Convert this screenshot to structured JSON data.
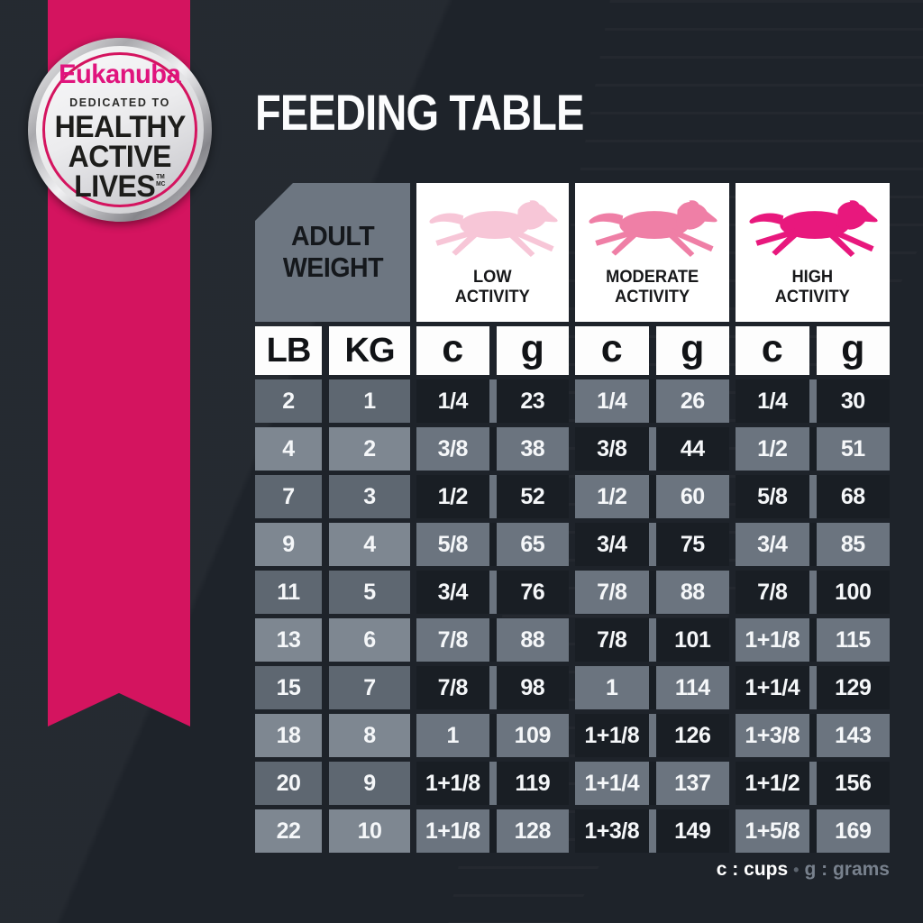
{
  "colors": {
    "background": "#1e232a",
    "ribbon_pink": "#d4145f",
    "brand_pink": "#e0147d",
    "dog_low": "#f7c6d7",
    "dog_moderate": "#ef7fa6",
    "dog_high": "#e8187d",
    "cell_dark": "#191e24",
    "cell_gray": "#6b747f",
    "weight_cell_dark": "#5e6771",
    "weight_cell_light": "#7e8791"
  },
  "badge": {
    "brand": "Eukanuba",
    "tagline": "DEDICATED TO",
    "line1": "HEALTHY",
    "line2": "ACTIVE",
    "line3": "LIVES",
    "tm": "TM",
    "mc": "MC"
  },
  "title": "FEEDING TABLE",
  "table": {
    "weight_header": {
      "line1": "ADULT",
      "line2": "WEIGHT"
    },
    "activities": [
      {
        "line1": "LOW",
        "line2": "ACTIVITY",
        "dog_color": "#f7c6d7"
      },
      {
        "line1": "MODERATE",
        "line2": "ACTIVITY",
        "dog_color": "#ef7fa6"
      },
      {
        "line1": "HIGH",
        "line2": "ACTIVITY",
        "dog_color": "#e8187d"
      }
    ],
    "col_headers": {
      "lb": "LB",
      "kg": "KG",
      "c": "c",
      "g": "g"
    },
    "rows": [
      {
        "lb": "2",
        "kg": "1",
        "low_c": "1/4",
        "low_g": "23",
        "mod_c": "1/4",
        "mod_g": "26",
        "high_c": "1/4",
        "high_g": "30"
      },
      {
        "lb": "4",
        "kg": "2",
        "low_c": "3/8",
        "low_g": "38",
        "mod_c": "3/8",
        "mod_g": "44",
        "high_c": "1/2",
        "high_g": "51"
      },
      {
        "lb": "7",
        "kg": "3",
        "low_c": "1/2",
        "low_g": "52",
        "mod_c": "1/2",
        "mod_g": "60",
        "high_c": "5/8",
        "high_g": "68"
      },
      {
        "lb": "9",
        "kg": "4",
        "low_c": "5/8",
        "low_g": "65",
        "mod_c": "3/4",
        "mod_g": "75",
        "high_c": "3/4",
        "high_g": "85"
      },
      {
        "lb": "11",
        "kg": "5",
        "low_c": "3/4",
        "low_g": "76",
        "mod_c": "7/8",
        "mod_g": "88",
        "high_c": "7/8",
        "high_g": "100"
      },
      {
        "lb": "13",
        "kg": "6",
        "low_c": "7/8",
        "low_g": "88",
        "mod_c": "7/8",
        "mod_g": "101",
        "high_c": "1+1/8",
        "high_g": "115"
      },
      {
        "lb": "15",
        "kg": "7",
        "low_c": "7/8",
        "low_g": "98",
        "mod_c": "1",
        "mod_g": "114",
        "high_c": "1+1/4",
        "high_g": "129"
      },
      {
        "lb": "18",
        "kg": "8",
        "low_c": "1",
        "low_g": "109",
        "mod_c": "1+1/8",
        "mod_g": "126",
        "high_c": "1+3/8",
        "high_g": "143"
      },
      {
        "lb": "20",
        "kg": "9",
        "low_c": "1+1/8",
        "low_g": "119",
        "mod_c": "1+1/4",
        "mod_g": "137",
        "high_c": "1+1/2",
        "high_g": "156"
      },
      {
        "lb": "22",
        "kg": "10",
        "low_c": "1+1/8",
        "low_g": "128",
        "mod_c": "1+3/8",
        "mod_g": "149",
        "high_c": "1+5/8",
        "high_g": "169"
      }
    ]
  },
  "legend": {
    "cups": "c : cups",
    "bullet": "•",
    "grams": "g : grams"
  }
}
